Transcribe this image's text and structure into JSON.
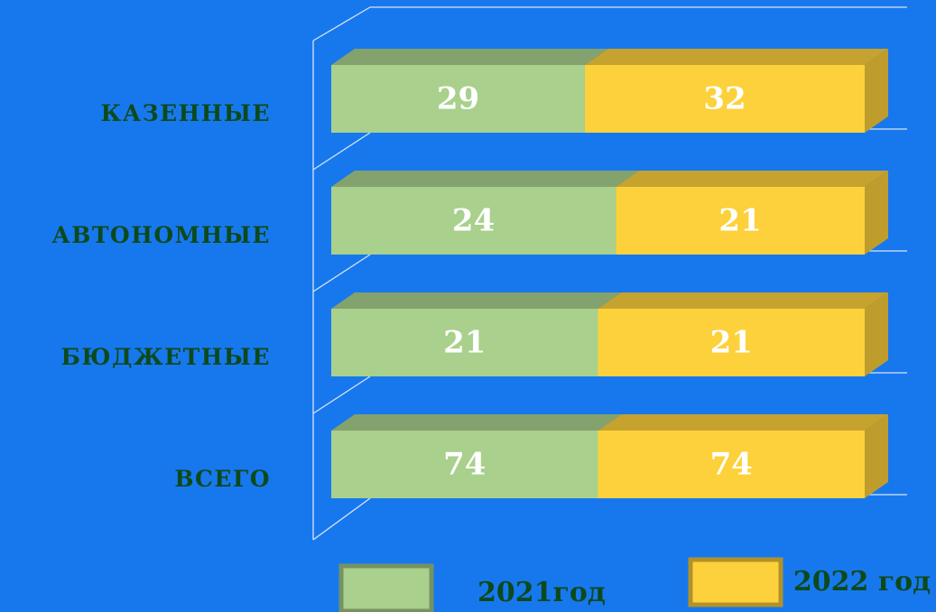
{
  "chart_data": {
    "type": "bar",
    "orientation": "horizontal",
    "stacked": "percent",
    "categories": [
      "КАЗЕННЫЕ",
      "АВТОНОМНЫЕ",
      "БЮДЖЕТНЫЕ",
      "ВСЕГО"
    ],
    "series": [
      {
        "name": "2021год",
        "color": "#a9d08c",
        "values": [
          29,
          24,
          21,
          74
        ]
      },
      {
        "name": "2022 год",
        "color": "#fdd13b",
        "values": [
          32,
          21,
          21,
          74
        ]
      }
    ]
  }
}
